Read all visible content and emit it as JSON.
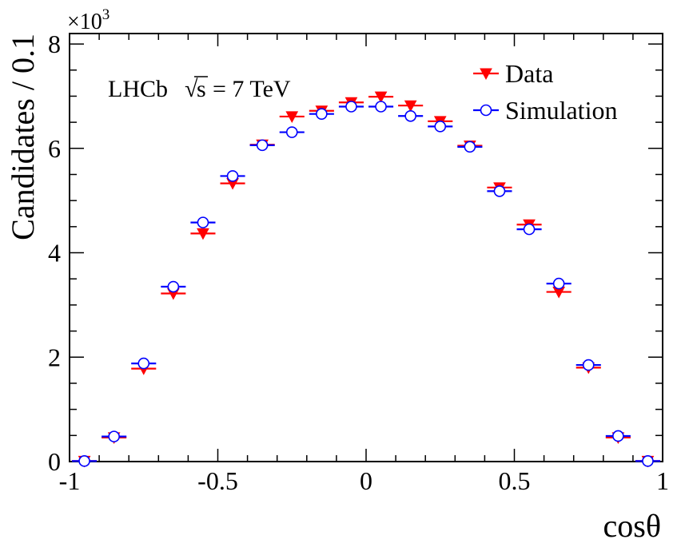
{
  "chart_data": {
    "type": "scatter",
    "title": "",
    "xlabel": "cosθ",
    "ylabel": "Candidates / 0.1",
    "y_multiplier": "×10",
    "y_multiplier_exp": "3",
    "xlim": [
      -1,
      1
    ],
    "ylim": [
      0,
      8.2
    ],
    "x_ticks": [
      {
        "v": -1,
        "label": "-1"
      },
      {
        "v": -0.5,
        "label": "-0.5"
      },
      {
        "v": 0,
        "label": "0"
      },
      {
        "v": 0.5,
        "label": "0.5"
      },
      {
        "v": 1,
        "label": "1"
      }
    ],
    "y_ticks": [
      {
        "v": 0,
        "label": "0"
      },
      {
        "v": 2,
        "label": "2"
      },
      {
        "v": 4,
        "label": "4"
      },
      {
        "v": 6,
        "label": "6"
      },
      {
        "v": 8,
        "label": "8"
      }
    ],
    "bin_width": 0.1,
    "x": [
      -0.95,
      -0.85,
      -0.75,
      -0.65,
      -0.55,
      -0.45,
      -0.35,
      -0.25,
      -0.15,
      -0.05,
      0.05,
      0.15,
      0.25,
      0.35,
      0.45,
      0.55,
      0.65,
      0.75,
      0.85,
      0.95
    ],
    "series": [
      {
        "name": "Data",
        "color": "#ff0000",
        "marker": "triangle-down",
        "values": [
          0.01,
          0.46,
          1.78,
          3.22,
          4.37,
          5.33,
          6.07,
          6.61,
          6.72,
          6.88,
          6.99,
          6.82,
          6.52,
          6.05,
          5.25,
          4.54,
          3.25,
          1.8,
          0.46,
          0.01
        ]
      },
      {
        "name": "Simulation",
        "color": "#0000ff",
        "marker": "open-circle",
        "values": [
          0.01,
          0.48,
          1.88,
          3.35,
          4.58,
          5.47,
          6.06,
          6.31,
          6.66,
          6.8,
          6.8,
          6.62,
          6.42,
          6.03,
          5.18,
          4.45,
          3.41,
          1.85,
          0.49,
          0.01
        ]
      }
    ],
    "legend_position": "top-right",
    "annotation": {
      "prefix": "LHCb",
      "sqrt_symbol": "√",
      "sqrt_arg": "s",
      "suffix": "= 7 TeV"
    }
  }
}
